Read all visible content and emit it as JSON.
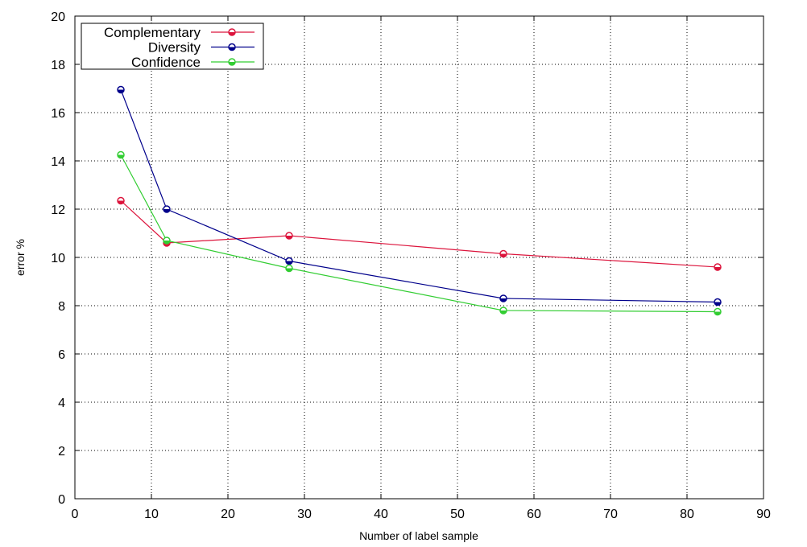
{
  "chart_data": {
    "type": "line",
    "title": "",
    "xlabel": "Number of label sample",
    "ylabel": "error %",
    "xlim": [
      0,
      90
    ],
    "ylim": [
      0,
      20
    ],
    "xticks": [
      0,
      10,
      20,
      30,
      40,
      50,
      60,
      70,
      80,
      90
    ],
    "yticks": [
      0,
      2,
      4,
      6,
      8,
      10,
      12,
      14,
      16,
      18,
      20
    ],
    "grid": true,
    "legend_position": "top-left",
    "x": [
      6,
      12,
      28,
      56,
      84
    ],
    "series": [
      {
        "name": "Complementary",
        "color": "#dc143c",
        "values": [
          12.35,
          10.6,
          10.9,
          10.15,
          9.6
        ]
      },
      {
        "name": "Diversity",
        "color": "#00008b",
        "values": [
          16.95,
          12.0,
          9.85,
          8.3,
          8.15
        ]
      },
      {
        "name": "Confidence",
        "color": "#32cd32",
        "values": [
          14.25,
          10.7,
          9.55,
          7.8,
          7.75
        ]
      }
    ]
  }
}
